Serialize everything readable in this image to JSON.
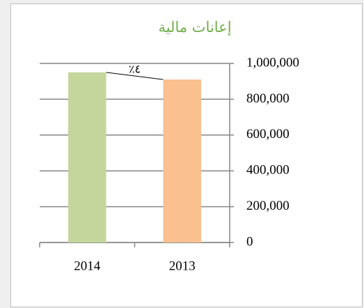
{
  "chart_data": {
    "type": "bar",
    "title": "إعانات مالية",
    "categories": [
      "2014",
      "2013"
    ],
    "values": [
      950000,
      910000
    ],
    "colors": [
      "#c3d69b",
      "#fac090"
    ],
    "annotation": "٤٪",
    "ylim": [
      0,
      1000000
    ],
    "yticks": [
      0,
      {
        "value": 200000,
        "label": "200,000"
      },
      {
        "value": 400000,
        "label": "400,000"
      },
      {
        "value": 600000,
        "label": "600,000"
      },
      {
        "value": 800000,
        "label": "800,000"
      },
      {
        "value": 1000000,
        "label": "1,000,000"
      }
    ],
    "grid": true,
    "y_axis_side": "right"
  }
}
